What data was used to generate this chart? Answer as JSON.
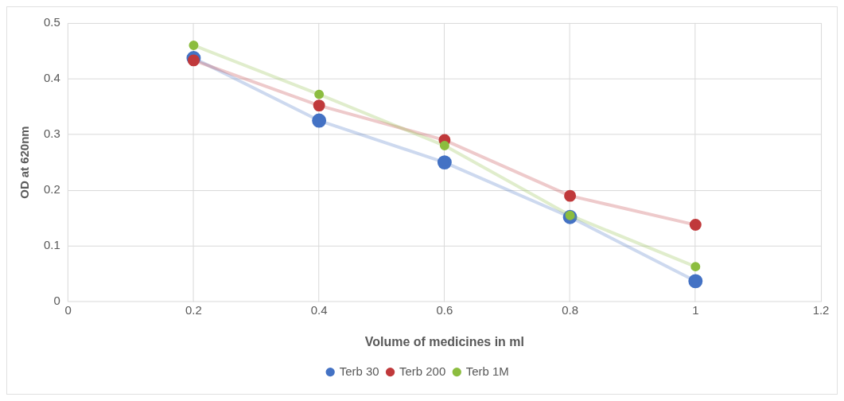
{
  "chart_data": {
    "type": "line",
    "xlabel": "Volume of medicines in ml",
    "ylabel": "OD at 620nm",
    "x": [
      0.2,
      0.4,
      0.6,
      0.8,
      1
    ],
    "series": [
      {
        "name": "Terb 30",
        "color": "#4472c4",
        "values": [
          0.437,
          0.325,
          0.25,
          0.152,
          0.037
        ]
      },
      {
        "name": "Terb 200",
        "color": "#c0393b",
        "values": [
          0.433,
          0.352,
          0.29,
          0.19,
          0.138
        ]
      },
      {
        "name": "Terb 1M",
        "color": "#8cbd3f",
        "values": [
          0.46,
          0.372,
          0.28,
          0.155,
          0.063
        ]
      }
    ],
    "xlim": [
      0,
      1.2
    ],
    "xticks": [
      0,
      0.2,
      0.4,
      0.6,
      0.8,
      1,
      1.2
    ],
    "ylim": [
      0,
      0.5
    ],
    "yticks": [
      0,
      0.1,
      0.2,
      0.3,
      0.4,
      0.5
    ],
    "grid": true,
    "legend": "bottom",
    "marker": "circle",
    "line_style": "solid"
  }
}
